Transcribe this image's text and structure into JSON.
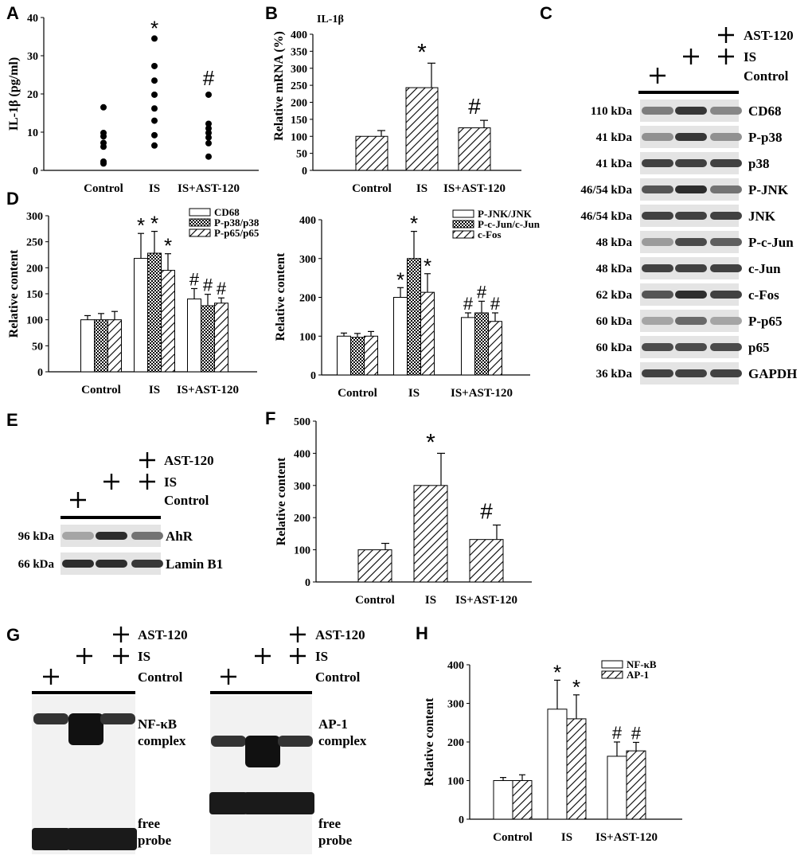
{
  "panel_letters": {
    "A": "A",
    "B": "B",
    "C": "C",
    "D": "D",
    "E": "E",
    "F": "F",
    "G": "G",
    "H": "H"
  },
  "treatments": {
    "ast": "AST-120",
    "is": "IS",
    "control": "Control"
  },
  "chart_data": [
    {
      "panel": "A",
      "type": "scatter",
      "ylabel": "IL-1β (pg/ml)",
      "categories": [
        "Control",
        "IS",
        "IS+AST-120"
      ],
      "ylim": [
        0,
        40
      ],
      "yticks": [
        0,
        10,
        20,
        30,
        40
      ],
      "points": [
        [
          16.5,
          9.8,
          8.9,
          7.2,
          6.2,
          2.3,
          1.8
        ],
        [
          34.5,
          27.3,
          23.5,
          19.8,
          16.2,
          13.0,
          9.2,
          6.5
        ],
        [
          19.8,
          12.2,
          11.0,
          9.8,
          8.6,
          7.1,
          3.6
        ]
      ],
      "markers": [
        "",
        "*",
        "#"
      ]
    },
    {
      "panel": "B",
      "type": "bar",
      "title": "IL-1β",
      "ylabel": "Relative mRNA (%)",
      "categories": [
        "Control",
        "IS",
        "IS+AST-120"
      ],
      "ylim": [
        0,
        400
      ],
      "yticks": [
        0,
        50,
        100,
        150,
        200,
        250,
        300,
        350,
        400
      ],
      "values": [
        100,
        243,
        125
      ],
      "errors": [
        17,
        72,
        22
      ],
      "markers": [
        "",
        "*",
        "#"
      ]
    },
    {
      "panel": "D-left",
      "type": "bar",
      "ylabel": "Relative content",
      "categories": [
        "Control",
        "IS",
        "IS+AST-120"
      ],
      "ylim": [
        0,
        300
      ],
      "yticks": [
        0,
        50,
        100,
        150,
        200,
        250,
        300
      ],
      "series": [
        {
          "name": "CD68",
          "values": [
            100,
            218,
            140
          ],
          "errors": [
            8,
            48,
            20
          ],
          "markers": [
            "",
            "*",
            "#"
          ]
        },
        {
          "name": "P-p38/p38",
          "values": [
            100,
            228,
            127
          ],
          "errors": [
            12,
            42,
            22
          ],
          "markers": [
            "",
            "*",
            "#"
          ]
        },
        {
          "name": "P-p65/p65",
          "values": [
            100,
            195,
            132
          ],
          "errors": [
            16,
            32,
            10
          ],
          "markers": [
            "",
            "*",
            "#"
          ]
        }
      ]
    },
    {
      "panel": "D-right",
      "type": "bar",
      "ylabel": "Relative content",
      "categories": [
        "Control",
        "IS",
        "IS+AST-120"
      ],
      "ylim": [
        0,
        400
      ],
      "yticks": [
        0,
        100,
        200,
        300,
        400
      ],
      "series": [
        {
          "name": "P-JNK/JNK",
          "values": [
            100,
            200,
            148
          ],
          "errors": [
            8,
            25,
            12
          ],
          "markers": [
            "",
            "*",
            "#"
          ]
        },
        {
          "name": "P-c-Jun/c-Jun",
          "values": [
            97,
            300,
            160
          ],
          "errors": [
            10,
            70,
            30
          ],
          "markers": [
            "",
            "*",
            "#"
          ]
        },
        {
          "name": "c-Fos",
          "values": [
            100,
            213,
            138
          ],
          "errors": [
            12,
            48,
            22
          ],
          "markers": [
            "",
            "*",
            "#"
          ]
        }
      ]
    },
    {
      "panel": "F",
      "type": "bar",
      "ylabel": "Relative content",
      "categories": [
        "Control",
        "IS",
        "IS+AST-120"
      ],
      "ylim": [
        0,
        500
      ],
      "yticks": [
        0,
        100,
        200,
        300,
        400,
        500
      ],
      "values": [
        100,
        300,
        132
      ],
      "errors": [
        20,
        100,
        45
      ],
      "markers": [
        "",
        "*",
        "#"
      ]
    },
    {
      "panel": "H",
      "type": "bar",
      "ylabel": "Relative content",
      "categories": [
        "Control",
        "IS",
        "IS+AST-120"
      ],
      "ylim": [
        0,
        400
      ],
      "yticks": [
        0,
        100,
        200,
        300,
        400
      ],
      "series": [
        {
          "name": "NF-κB",
          "values": [
            100,
            285,
            163
          ],
          "errors": [
            8,
            75,
            37
          ],
          "markers": [
            "",
            "*",
            "#"
          ]
        },
        {
          "name": "AP-1",
          "values": [
            100,
            260,
            177
          ],
          "errors": [
            15,
            62,
            22
          ],
          "markers": [
            "",
            "*",
            "#"
          ]
        }
      ]
    }
  ],
  "blots_c": {
    "rows": [
      {
        "kda": "110 kDa",
        "label": "CD68",
        "intensity": [
          0.55,
          0.9,
          0.5
        ]
      },
      {
        "kda": "41 kDa",
        "label": "P-p38",
        "intensity": [
          0.45,
          0.9,
          0.45
        ]
      },
      {
        "kda": "41 kDa",
        "label": "p38",
        "intensity": [
          0.85,
          0.85,
          0.85
        ]
      },
      {
        "kda": "46/54 kDa",
        "label": "P-JNK",
        "intensity": [
          0.75,
          0.95,
          0.6
        ]
      },
      {
        "kda": "46/54 kDa",
        "label": "JNK",
        "intensity": [
          0.85,
          0.85,
          0.85
        ]
      },
      {
        "kda": "48 kDa",
        "label": "P-c-Jun",
        "intensity": [
          0.4,
          0.8,
          0.7
        ]
      },
      {
        "kda": "48 kDa",
        "label": "c-Jun",
        "intensity": [
          0.85,
          0.85,
          0.85
        ]
      },
      {
        "kda": "62 kDa",
        "label": "c-Fos",
        "intensity": [
          0.75,
          0.95,
          0.85
        ]
      },
      {
        "kda": "60 kDa",
        "label": "P-p65",
        "intensity": [
          0.35,
          0.65,
          0.35
        ]
      },
      {
        "kda": "60 kDa",
        "label": "p65",
        "intensity": [
          0.8,
          0.8,
          0.8
        ]
      },
      {
        "kda": "36 kDa",
        "label": "GAPDH",
        "intensity": [
          0.85,
          0.85,
          0.85
        ]
      }
    ]
  },
  "blots_e": {
    "rows": [
      {
        "kda": "96 kDa",
        "label": "AhR",
        "intensity": [
          0.35,
          0.95,
          0.6
        ]
      },
      {
        "kda": "66 kDa",
        "label": "Lamin B1",
        "intensity": [
          0.95,
          0.95,
          0.9
        ]
      }
    ]
  },
  "emsa": {
    "left": {
      "complex_line1": "NF-κB",
      "complex_line2": "complex",
      "free_line1": "free",
      "free_line2": "probe"
    },
    "right": {
      "complex_line1": "AP-1",
      "complex_line2": "complex",
      "free_line1": "free",
      "free_line2": "probe"
    }
  }
}
